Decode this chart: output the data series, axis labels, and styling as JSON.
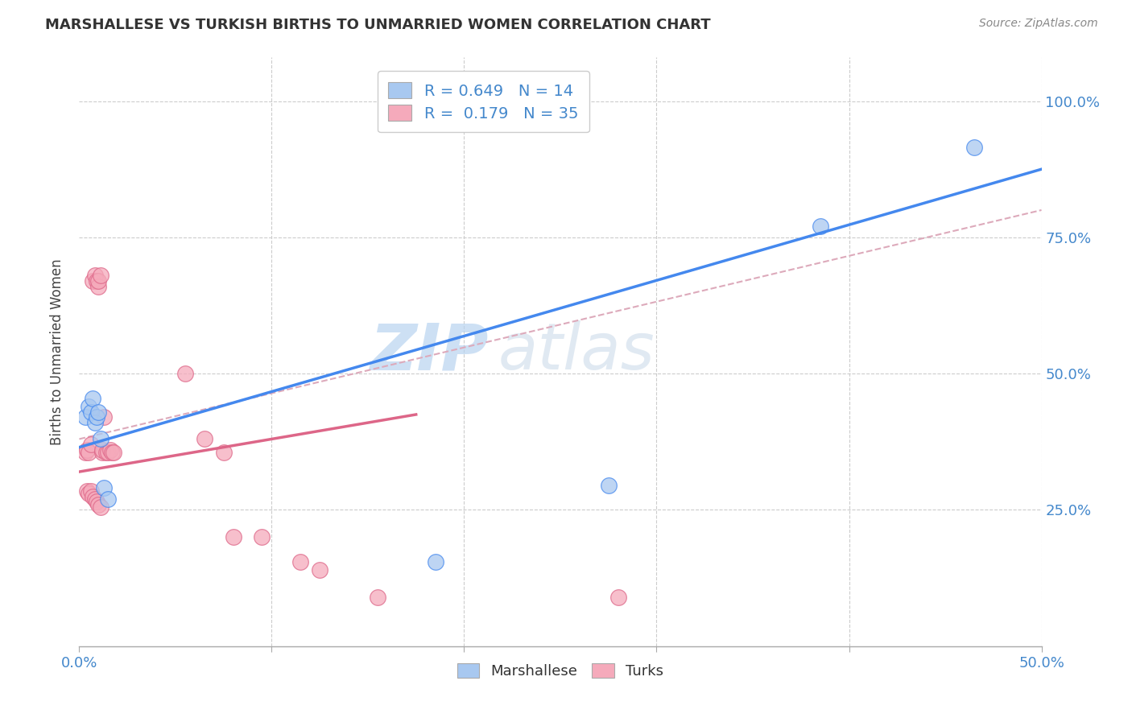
{
  "title": "MARSHALLESE VS TURKISH BIRTHS TO UNMARRIED WOMEN CORRELATION CHART",
  "source": "Source: ZipAtlas.com",
  "ylabel": "Births to Unmarried Women",
  "ytick_labels": [
    "25.0%",
    "50.0%",
    "75.0%",
    "100.0%"
  ],
  "ytick_values": [
    0.25,
    0.5,
    0.75,
    1.0
  ],
  "watermark_zip": "ZIP",
  "watermark_atlas": "atlas",
  "legend_r1_label": "R = 0.649   N = 14",
  "legend_r2_label": "R =  0.179   N = 35",
  "marshallese_color": "#a8c8f0",
  "turks_color": "#f5aabb",
  "blue_line_color": "#4488ee",
  "pink_line_color": "#dd6688",
  "dashed_line_color": "#ddaabb",
  "xlim": [
    0.0,
    0.5
  ],
  "ylim": [
    0.0,
    1.08
  ],
  "marshallese_x": [
    0.003,
    0.005,
    0.006,
    0.007,
    0.008,
    0.009,
    0.01,
    0.011,
    0.013,
    0.015,
    0.185,
    0.275,
    0.385,
    0.465
  ],
  "marshallese_y": [
    0.42,
    0.44,
    0.43,
    0.455,
    0.41,
    0.42,
    0.43,
    0.38,
    0.29,
    0.27,
    0.155,
    0.295,
    0.77,
    0.915
  ],
  "turks_x": [
    0.003,
    0.004,
    0.005,
    0.006,
    0.007,
    0.008,
    0.009,
    0.01,
    0.01,
    0.011,
    0.012,
    0.012,
    0.013,
    0.014,
    0.015,
    0.016,
    0.017,
    0.018,
    0.004,
    0.005,
    0.006,
    0.007,
    0.008,
    0.009,
    0.01,
    0.011,
    0.055,
    0.065,
    0.075,
    0.08,
    0.095,
    0.115,
    0.125,
    0.155,
    0.28
  ],
  "turks_y": [
    0.355,
    0.36,
    0.355,
    0.37,
    0.67,
    0.68,
    0.67,
    0.66,
    0.67,
    0.68,
    0.355,
    0.36,
    0.42,
    0.355,
    0.355,
    0.36,
    0.355,
    0.355,
    0.285,
    0.28,
    0.285,
    0.275,
    0.27,
    0.265,
    0.26,
    0.255,
    0.5,
    0.38,
    0.355,
    0.2,
    0.2,
    0.155,
    0.14,
    0.09,
    0.09
  ],
  "blue_trend_x": [
    0.0,
    0.5
  ],
  "blue_trend_y": [
    0.365,
    0.875
  ],
  "pink_trend_x": [
    0.0,
    0.175
  ],
  "pink_trend_y": [
    0.32,
    0.425
  ],
  "dashed_trend_x": [
    0.0,
    0.5
  ],
  "dashed_trend_y": [
    0.38,
    0.8
  ]
}
